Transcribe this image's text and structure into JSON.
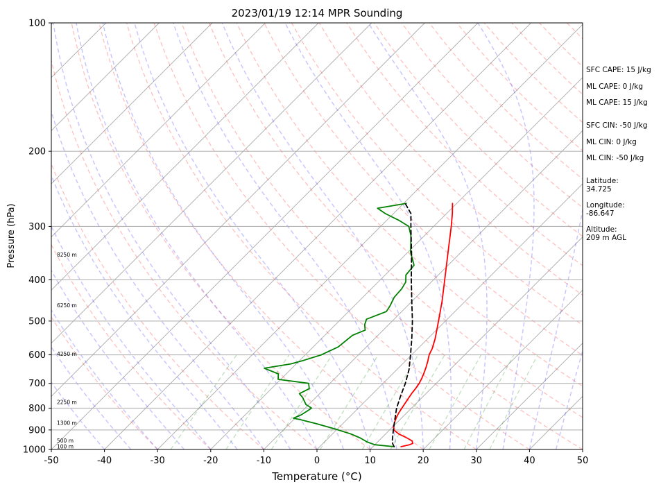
{
  "chart_data": {
    "type": "line",
    "title": "2023/01/19 12:14 MPR Sounding",
    "xlabel": "Temperature (°C)",
    "ylabel": "Pressure (hPa)",
    "xlim": [
      -50,
      50
    ],
    "ylim": [
      1000,
      100
    ],
    "y_scale": "log",
    "x_ticks": [
      -50,
      -40,
      -30,
      -20,
      -10,
      0,
      10,
      20,
      30,
      40,
      50
    ],
    "y_ticks": [
      1000,
      900,
      800,
      700,
      600,
      500,
      400,
      300,
      200,
      100
    ],
    "grid": true,
    "height_labels": [
      {
        "text": "100 m",
        "p": 985
      },
      {
        "text": "500 m",
        "p": 955
      },
      {
        "text": "1300 m",
        "p": 868
      },
      {
        "text": "2250 m",
        "p": 775
      },
      {
        "text": "4250 m",
        "p": 598
      },
      {
        "text": "6250 m",
        "p": 460
      },
      {
        "text": "8250 m",
        "p": 350
      }
    ],
    "series": [
      {
        "color": "#ff0000",
        "style": "solid",
        "points": [
          [
            985,
            15.3
          ],
          [
            975,
            16.5
          ],
          [
            968,
            16.9
          ],
          [
            955,
            16.3
          ],
          [
            940,
            14.8
          ],
          [
            920,
            12.5
          ],
          [
            900,
            10.8
          ],
          [
            880,
            10.0
          ],
          [
            860,
            9.4
          ],
          [
            840,
            8.9
          ],
          [
            820,
            8.5
          ],
          [
            800,
            8.2
          ],
          [
            780,
            7.9
          ],
          [
            760,
            7.6
          ],
          [
            740,
            7.3
          ],
          [
            720,
            7.1
          ],
          [
            700,
            6.8
          ],
          [
            680,
            6.3
          ],
          [
            660,
            5.7
          ],
          [
            640,
            5.0
          ],
          [
            620,
            4.2
          ],
          [
            600,
            3.3
          ],
          [
            580,
            2.7
          ],
          [
            550,
            1.4
          ],
          [
            500,
            -1.3
          ],
          [
            450,
            -4.3
          ],
          [
            400,
            -7.9
          ],
          [
            350,
            -12.0
          ],
          [
            300,
            -16.7
          ],
          [
            280,
            -18.9
          ],
          [
            265,
            -20.8
          ]
        ]
      },
      {
        "color": "#008000",
        "style": "solid",
        "points": [
          [
            985,
            14.0
          ],
          [
            975,
            10.0
          ],
          [
            960,
            8.0
          ],
          [
            940,
            6.0
          ],
          [
            920,
            3.5
          ],
          [
            895,
            -0.5
          ],
          [
            870,
            -5.0
          ],
          [
            850,
            -9.0
          ],
          [
            845,
            -10.3
          ],
          [
            830,
            -9.5
          ],
          [
            810,
            -9.0
          ],
          [
            800,
            -8.8
          ],
          [
            785,
            -10.5
          ],
          [
            770,
            -11.5
          ],
          [
            755,
            -12.5
          ],
          [
            740,
            -13.8
          ],
          [
            720,
            -12.9
          ],
          [
            700,
            -14.0
          ],
          [
            685,
            -20.5
          ],
          [
            665,
            -21.5
          ],
          [
            645,
            -25.2
          ],
          [
            630,
            -21.0
          ],
          [
            620,
            -19.5
          ],
          [
            600,
            -17.0
          ],
          [
            575,
            -15.3
          ],
          [
            540,
            -14.8
          ],
          [
            525,
            -13.4
          ],
          [
            510,
            -14.5
          ],
          [
            495,
            -15.2
          ],
          [
            475,
            -12.9
          ],
          [
            460,
            -13.3
          ],
          [
            440,
            -14.1
          ],
          [
            420,
            -14.3
          ],
          [
            405,
            -14.8
          ],
          [
            390,
            -16.1
          ],
          [
            370,
            -16.4
          ],
          [
            360,
            -17.6
          ],
          [
            345,
            -19.5
          ],
          [
            330,
            -21.0
          ],
          [
            315,
            -22.6
          ],
          [
            300,
            -24.7
          ],
          [
            290,
            -27.8
          ],
          [
            280,
            -31.5
          ],
          [
            272,
            -34.0
          ],
          [
            265,
            -29.5
          ]
        ]
      },
      {
        "color": "#000000",
        "style": "dashed",
        "points": [
          [
            985,
            14.0
          ],
          [
            970,
            13.2
          ],
          [
            950,
            12.4
          ],
          [
            900,
            10.7
          ],
          [
            850,
            9.0
          ],
          [
            800,
            7.2
          ],
          [
            750,
            5.7
          ],
          [
            700,
            4.2
          ],
          [
            650,
            2.3
          ],
          [
            600,
            -0.2
          ],
          [
            550,
            -3.0
          ],
          [
            500,
            -6.2
          ],
          [
            450,
            -10.0
          ],
          [
            400,
            -14.2
          ],
          [
            350,
            -18.8
          ],
          [
            300,
            -24.3
          ],
          [
            280,
            -26.7
          ],
          [
            265,
            -29.7
          ]
        ]
      }
    ]
  },
  "stats": {
    "sfc_cape": "SFC CAPE: 15 J/kg",
    "ml_cape_1": "ML CAPE: 0 J/kg",
    "ml_cape_2": "ML CAPE: 15 J/kg",
    "sfc_cin": "SFC CIN: -50 J/kg",
    "ml_cin_1": "ML CIN: 0 J/kg",
    "ml_cin_2": "ML CIN: -50 J/kg",
    "latitude_label": "Latitude:",
    "latitude_value": "34.725",
    "longitude_label": "Longitude:",
    "longitude_value": "-86.647",
    "altitude_label": "Altitude:",
    "altitude_value": "209 m AGL"
  }
}
